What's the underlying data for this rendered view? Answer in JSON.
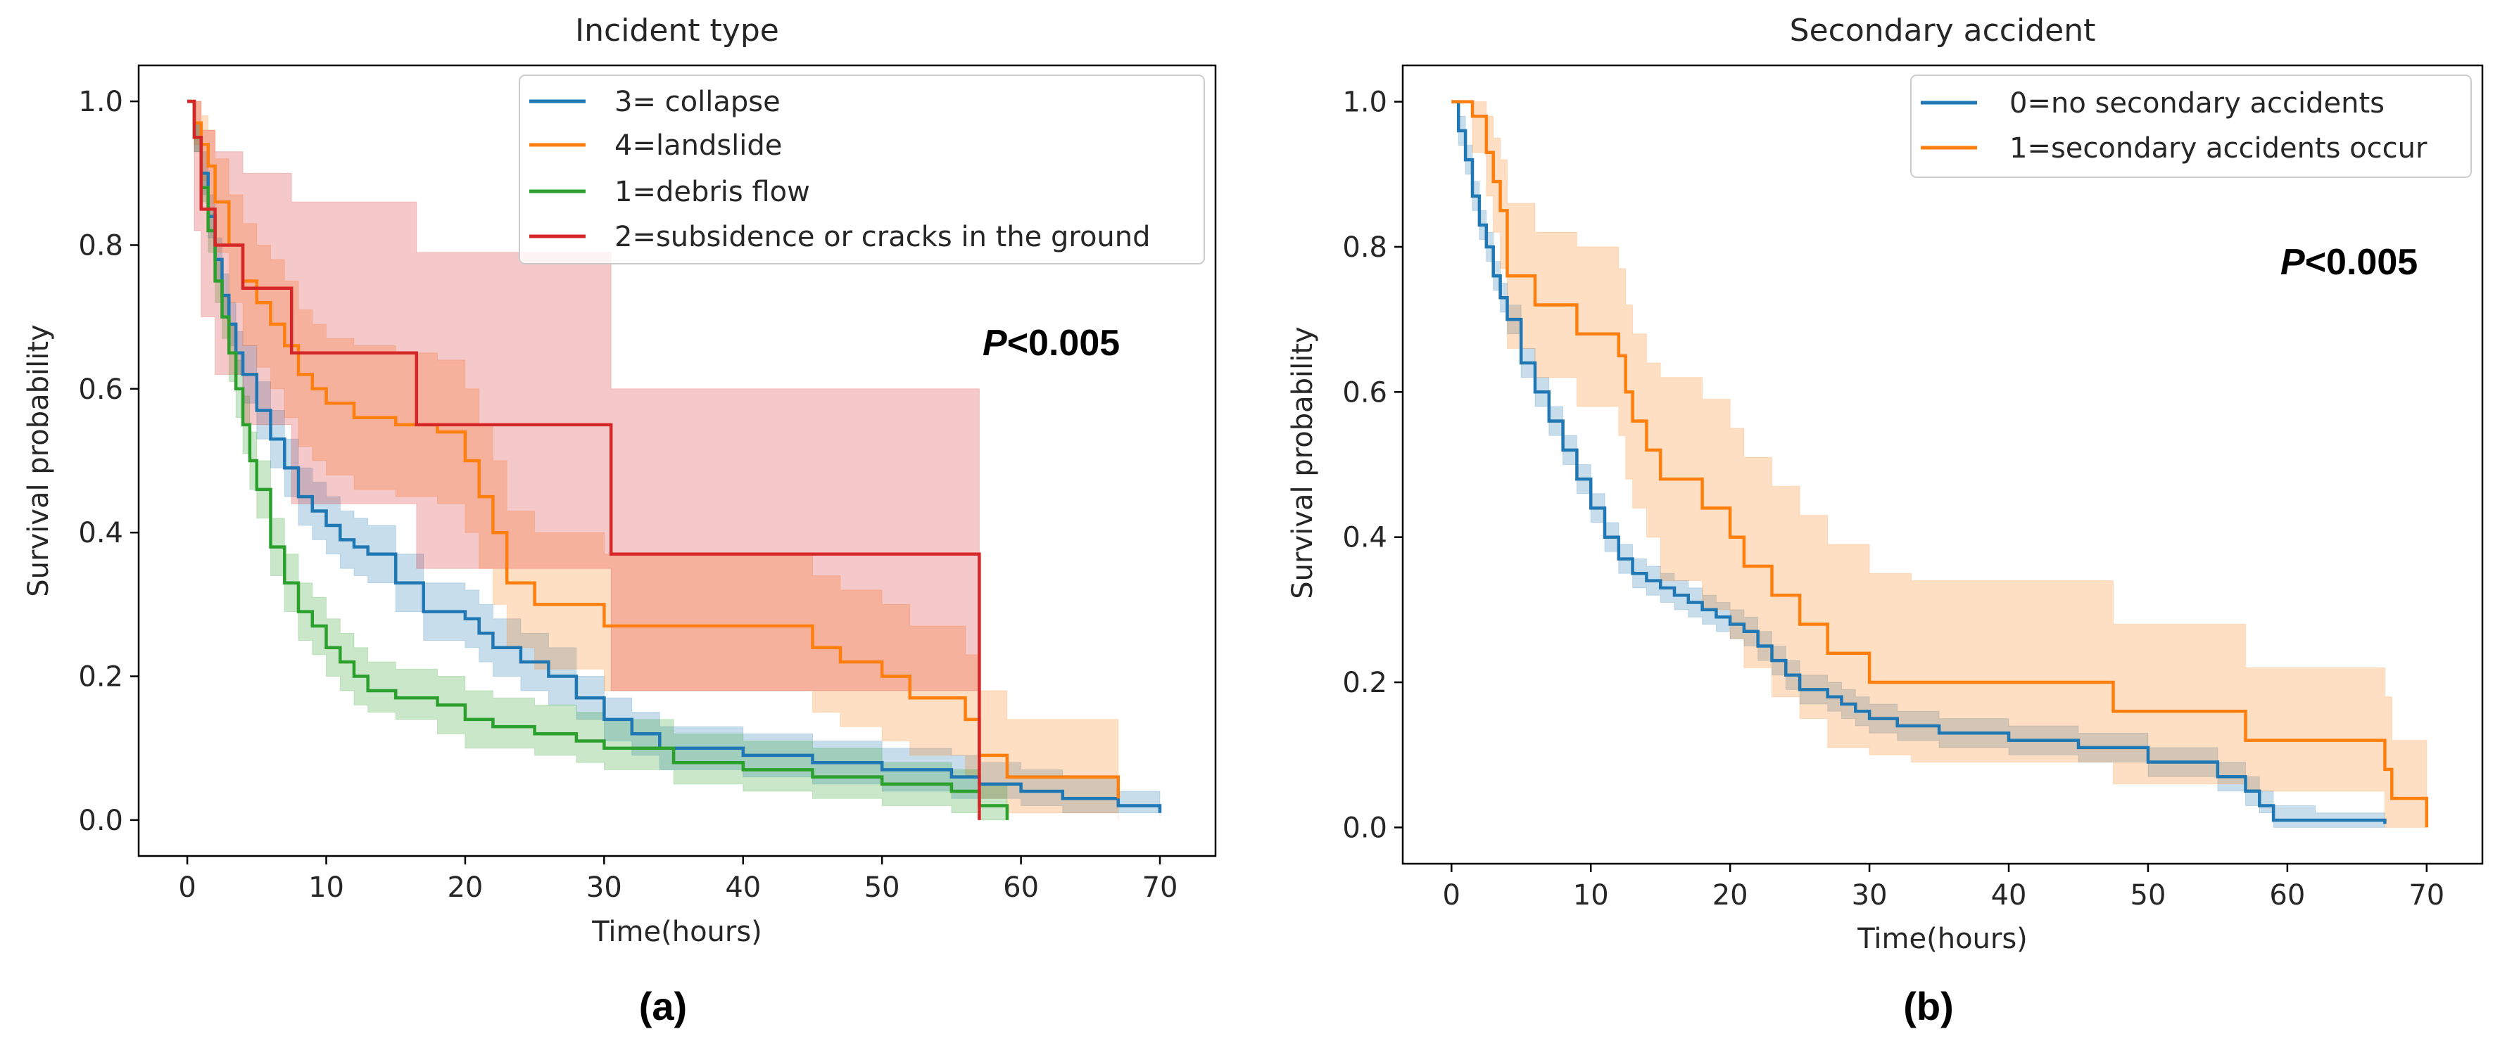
{
  "chart_data": [
    {
      "type": "line",
      "subtype": "kaplan-meier",
      "title": "Incident type",
      "xlabel": "Time(hours)",
      "ylabel": "Survival probability",
      "xlim": [
        -3.5,
        74
      ],
      "ylim": [
        -0.05,
        1.05
      ],
      "xticks": [
        0,
        10,
        20,
        30,
        40,
        50,
        60,
        70
      ],
      "yticks": [
        0.0,
        0.2,
        0.4,
        0.6,
        0.8,
        1.0
      ],
      "xtick_labels": [
        "0",
        "10",
        "20",
        "30",
        "40",
        "50",
        "60",
        "70"
      ],
      "ytick_labels": [
        "0.0",
        "0.2",
        "0.4",
        "0.6",
        "0.8",
        "1.0"
      ],
      "legend_position": "top-right",
      "annotation": {
        "italic": "P",
        "rest": "<0.005"
      },
      "caption": "(a)",
      "series": [
        {
          "name": "3= collapse",
          "color": "#1f77b4",
          "x": [
            0,
            0.5,
            1,
            1.5,
            2,
            2.5,
            3,
            3.5,
            4,
            5,
            6,
            7,
            8,
            9,
            10,
            11,
            12,
            13,
            15,
            17,
            20,
            21,
            22,
            24,
            26,
            28,
            30,
            32,
            34,
            36,
            40,
            45,
            50,
            55,
            57,
            60,
            63,
            67,
            70
          ],
          "y": [
            1.0,
            0.95,
            0.9,
            0.84,
            0.78,
            0.73,
            0.69,
            0.65,
            0.62,
            0.57,
            0.53,
            0.49,
            0.45,
            0.43,
            0.41,
            0.39,
            0.38,
            0.37,
            0.33,
            0.29,
            0.28,
            0.26,
            0.24,
            0.22,
            0.2,
            0.17,
            0.14,
            0.12,
            0.1,
            0.1,
            0.09,
            0.08,
            0.07,
            0.06,
            0.05,
            0.04,
            0.03,
            0.02,
            0.01
          ],
          "ci_lower": [
            1.0,
            0.93,
            0.87,
            0.81,
            0.75,
            0.7,
            0.66,
            0.62,
            0.58,
            0.53,
            0.49,
            0.45,
            0.41,
            0.39,
            0.37,
            0.35,
            0.34,
            0.33,
            0.29,
            0.25,
            0.24,
            0.22,
            0.2,
            0.18,
            0.16,
            0.14,
            0.11,
            0.09,
            0.07,
            0.07,
            0.06,
            0.05,
            0.04,
            0.03,
            0.03,
            0.02,
            0.01,
            0.01,
            0.005
          ],
          "ci_upper": [
            1.0,
            0.97,
            0.93,
            0.87,
            0.81,
            0.76,
            0.72,
            0.68,
            0.66,
            0.61,
            0.57,
            0.53,
            0.49,
            0.47,
            0.45,
            0.43,
            0.42,
            0.41,
            0.37,
            0.33,
            0.32,
            0.3,
            0.28,
            0.26,
            0.24,
            0.2,
            0.17,
            0.15,
            0.13,
            0.13,
            0.12,
            0.11,
            0.1,
            0.09,
            0.08,
            0.07,
            0.06,
            0.04,
            0.02
          ]
        },
        {
          "name": "4=landslide",
          "color": "#ff7f0e",
          "x": [
            0,
            0.5,
            1,
            1.5,
            2,
            3,
            4,
            5,
            6,
            7,
            8,
            9,
            10,
            12,
            15,
            18,
            20,
            21,
            22,
            23,
            25,
            30,
            35,
            45,
            47,
            50,
            52,
            56,
            57,
            59,
            67
          ],
          "y": [
            1.0,
            0.97,
            0.94,
            0.91,
            0.86,
            0.8,
            0.75,
            0.72,
            0.69,
            0.66,
            0.62,
            0.6,
            0.58,
            0.56,
            0.55,
            0.54,
            0.5,
            0.45,
            0.4,
            0.33,
            0.3,
            0.27,
            0.27,
            0.24,
            0.22,
            0.2,
            0.17,
            0.14,
            0.09,
            0.06,
            0.03
          ],
          "ci_lower": [
            1.0,
            0.94,
            0.89,
            0.85,
            0.79,
            0.72,
            0.66,
            0.63,
            0.6,
            0.56,
            0.52,
            0.5,
            0.48,
            0.46,
            0.45,
            0.44,
            0.4,
            0.35,
            0.3,
            0.24,
            0.21,
            0.18,
            0.18,
            0.15,
            0.13,
            0.11,
            0.09,
            0.06,
            0.03,
            0.01,
            0.0
          ],
          "ci_upper": [
            1.0,
            1.0,
            0.98,
            0.96,
            0.92,
            0.87,
            0.83,
            0.8,
            0.78,
            0.75,
            0.71,
            0.69,
            0.67,
            0.66,
            0.65,
            0.64,
            0.6,
            0.55,
            0.5,
            0.43,
            0.4,
            0.37,
            0.37,
            0.34,
            0.32,
            0.3,
            0.27,
            0.23,
            0.18,
            0.14,
            0.08
          ]
        },
        {
          "name": "1=debris flow",
          "color": "#2ca02c",
          "x": [
            0,
            0.5,
            1,
            1.5,
            2,
            2.5,
            3,
            3.5,
            4,
            4.5,
            5,
            6,
            7,
            8,
            9,
            10,
            11,
            12,
            13,
            15,
            18,
            20,
            22,
            25,
            28,
            30,
            35,
            40,
            45,
            50,
            55,
            57,
            59
          ],
          "y": [
            1.0,
            0.95,
            0.88,
            0.82,
            0.75,
            0.7,
            0.65,
            0.6,
            0.55,
            0.5,
            0.46,
            0.38,
            0.33,
            0.29,
            0.27,
            0.24,
            0.22,
            0.2,
            0.18,
            0.17,
            0.16,
            0.14,
            0.13,
            0.12,
            0.11,
            0.1,
            0.08,
            0.07,
            0.06,
            0.05,
            0.04,
            0.02,
            0.0
          ],
          "ci_lower": [
            1.0,
            0.93,
            0.86,
            0.79,
            0.72,
            0.67,
            0.61,
            0.56,
            0.51,
            0.46,
            0.42,
            0.34,
            0.29,
            0.25,
            0.23,
            0.2,
            0.18,
            0.16,
            0.15,
            0.14,
            0.12,
            0.1,
            0.1,
            0.09,
            0.08,
            0.07,
            0.05,
            0.04,
            0.03,
            0.02,
            0.01,
            0.0,
            0.0
          ],
          "ci_upper": [
            1.0,
            0.97,
            0.9,
            0.85,
            0.78,
            0.73,
            0.69,
            0.64,
            0.59,
            0.54,
            0.5,
            0.42,
            0.37,
            0.33,
            0.31,
            0.28,
            0.26,
            0.24,
            0.22,
            0.21,
            0.2,
            0.18,
            0.17,
            0.16,
            0.15,
            0.14,
            0.12,
            0.11,
            0.1,
            0.08,
            0.07,
            0.05,
            0.0
          ]
        },
        {
          "name": "2=subsidence or cracks in the ground",
          "color": "#d62728",
          "x": [
            0,
            0.5,
            1,
            2,
            4,
            7.5,
            16.5,
            30.5,
            57
          ],
          "y": [
            1.0,
            0.95,
            0.85,
            0.8,
            0.74,
            0.65,
            0.55,
            0.37,
            0.0
          ],
          "ci_lower": [
            1.0,
            0.82,
            0.7,
            0.62,
            0.55,
            0.44,
            0.35,
            0.18,
            0.0
          ],
          "ci_upper": [
            1.0,
            1.0,
            0.96,
            0.93,
            0.9,
            0.86,
            0.79,
            0.6,
            0.0
          ]
        }
      ]
    },
    {
      "type": "line",
      "subtype": "kaplan-meier",
      "title": "Secondary accident",
      "xlabel": "Time(hours)",
      "ylabel": "Survival probability",
      "xlim": [
        -3.5,
        74
      ],
      "ylim": [
        -0.05,
        1.05
      ],
      "xticks": [
        0,
        10,
        20,
        30,
        40,
        50,
        60,
        70
      ],
      "yticks": [
        0.0,
        0.2,
        0.4,
        0.6,
        0.8,
        1.0
      ],
      "xtick_labels": [
        "0",
        "10",
        "20",
        "30",
        "40",
        "50",
        "60",
        "70"
      ],
      "ytick_labels": [
        "0.0",
        "0.2",
        "0.4",
        "0.6",
        "0.8",
        "1.0"
      ],
      "legend_position": "top-right",
      "annotation": {
        "italic": "P",
        "rest": "<0.005"
      },
      "caption": "(b)",
      "series": [
        {
          "name": "0=no secondary accidents",
          "color": "#1f77b4",
          "x": [
            0,
            0.5,
            1,
            1.5,
            2,
            2.5,
            3,
            3.5,
            4,
            5,
            6,
            7,
            8,
            9,
            10,
            11,
            12,
            13,
            14,
            15,
            16,
            17,
            18,
            19,
            20,
            21,
            22,
            23,
            24,
            25,
            27,
            28,
            29,
            30,
            32,
            35,
            40,
            45,
            50,
            55,
            57,
            58,
            59,
            62,
            67
          ],
          "y": [
            1.0,
            0.96,
            0.92,
            0.87,
            0.83,
            0.8,
            0.76,
            0.73,
            0.7,
            0.64,
            0.6,
            0.56,
            0.52,
            0.48,
            0.44,
            0.4,
            0.37,
            0.35,
            0.34,
            0.33,
            0.32,
            0.31,
            0.3,
            0.29,
            0.28,
            0.27,
            0.25,
            0.23,
            0.21,
            0.19,
            0.18,
            0.17,
            0.16,
            0.15,
            0.14,
            0.13,
            0.12,
            0.11,
            0.09,
            0.07,
            0.05,
            0.03,
            0.01,
            0.01,
            0.005
          ],
          "ci_lower": [
            1.0,
            0.94,
            0.9,
            0.85,
            0.81,
            0.78,
            0.74,
            0.71,
            0.68,
            0.62,
            0.58,
            0.54,
            0.5,
            0.46,
            0.42,
            0.38,
            0.35,
            0.33,
            0.32,
            0.31,
            0.3,
            0.29,
            0.28,
            0.27,
            0.26,
            0.25,
            0.23,
            0.21,
            0.19,
            0.17,
            0.16,
            0.15,
            0.14,
            0.13,
            0.12,
            0.11,
            0.1,
            0.09,
            0.07,
            0.05,
            0.03,
            0.02,
            0.0,
            0.0,
            0.0
          ],
          "ci_upper": [
            1.0,
            0.98,
            0.94,
            0.89,
            0.85,
            0.82,
            0.78,
            0.75,
            0.72,
            0.66,
            0.62,
            0.58,
            0.54,
            0.5,
            0.46,
            0.42,
            0.39,
            0.37,
            0.36,
            0.35,
            0.34,
            0.33,
            0.32,
            0.31,
            0.3,
            0.29,
            0.27,
            0.25,
            0.23,
            0.21,
            0.2,
            0.19,
            0.18,
            0.17,
            0.16,
            0.15,
            0.14,
            0.13,
            0.11,
            0.09,
            0.07,
            0.05,
            0.03,
            0.02,
            0.02
          ]
        },
        {
          "name": "1=secondary accidents occur",
          "color": "#ff7f0e",
          "x": [
            0,
            1.5,
            2.5,
            3,
            3.5,
            4,
            6,
            9,
            12,
            12.5,
            13,
            14,
            15,
            18,
            20,
            21,
            23,
            25,
            27,
            30,
            33,
            47.5,
            57,
            67,
            67.5,
            70
          ],
          "y": [
            1.0,
            0.98,
            0.93,
            0.89,
            0.85,
            0.76,
            0.72,
            0.68,
            0.65,
            0.6,
            0.56,
            0.52,
            0.48,
            0.44,
            0.4,
            0.36,
            0.32,
            0.28,
            0.24,
            0.2,
            0.2,
            0.16,
            0.12,
            0.08,
            0.04,
            0.0
          ],
          "ci_lower": [
            1.0,
            0.93,
            0.87,
            0.82,
            0.77,
            0.66,
            0.62,
            0.58,
            0.54,
            0.48,
            0.44,
            0.4,
            0.34,
            0.3,
            0.26,
            0.22,
            0.18,
            0.15,
            0.11,
            0.1,
            0.09,
            0.06,
            0.05,
            0.0,
            0.0,
            0.0
          ],
          "ci_upper": [
            1.0,
            1.0,
            0.98,
            0.95,
            0.92,
            0.86,
            0.82,
            0.8,
            0.77,
            0.72,
            0.68,
            0.64,
            0.62,
            0.59,
            0.55,
            0.51,
            0.47,
            0.43,
            0.39,
            0.35,
            0.34,
            0.28,
            0.22,
            0.18,
            0.12,
            0.12
          ]
        }
      ]
    }
  ]
}
